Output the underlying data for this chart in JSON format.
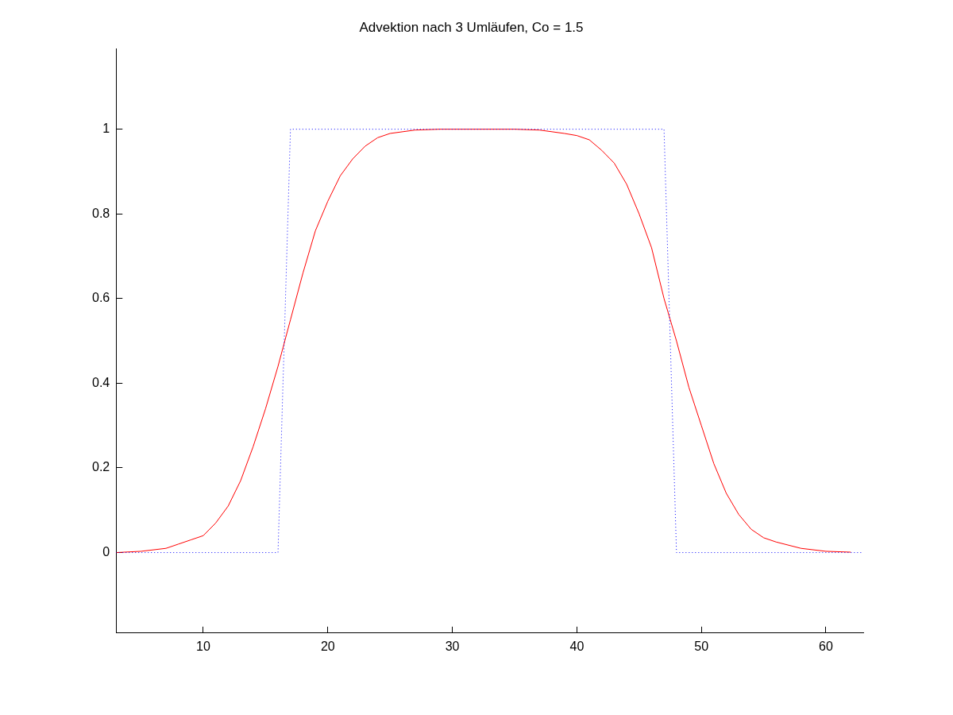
{
  "chart_data": {
    "type": "line",
    "title": "Advektion nach 3 Umläufen, Co = 1.5",
    "xlim": [
      3,
      63
    ],
    "xticks": [
      10,
      20,
      30,
      40,
      50,
      60
    ],
    "ylim": [
      -0.19,
      1.19
    ],
    "yticks": [
      0,
      0.2,
      0.4,
      0.6,
      0.8,
      1
    ],
    "grid": false,
    "legend": false,
    "marker": "none",
    "series": [
      {
        "color": "#0000ff",
        "line_style": "dotted",
        "x": [
          3,
          16,
          17,
          47,
          48,
          63
        ],
        "values": [
          0,
          0,
          1,
          1,
          0,
          0
        ]
      },
      {
        "color": "#ff0000",
        "line_style": "solid",
        "x": [
          3,
          5,
          7,
          8,
          9,
          10,
          11,
          12,
          13,
          14,
          15,
          16,
          17,
          18,
          19,
          20,
          21,
          22,
          23,
          24,
          25,
          27,
          29,
          35,
          37,
          39,
          40,
          41,
          42,
          43,
          44,
          45,
          46,
          47,
          48,
          49,
          50,
          51,
          52,
          53,
          54,
          55,
          56,
          58,
          60,
          62
        ],
        "values": [
          0,
          0.003,
          0.01,
          0.02,
          0.03,
          0.04,
          0.07,
          0.11,
          0.17,
          0.25,
          0.34,
          0.44,
          0.55,
          0.66,
          0.76,
          0.83,
          0.89,
          0.93,
          0.96,
          0.98,
          0.99,
          0.998,
          1,
          1,
          0.998,
          0.99,
          0.985,
          0.975,
          0.95,
          0.92,
          0.87,
          0.8,
          0.72,
          0.6,
          0.5,
          0.39,
          0.3,
          0.21,
          0.14,
          0.09,
          0.055,
          0.035,
          0.025,
          0.01,
          0.003,
          0.001
        ]
      }
    ]
  }
}
